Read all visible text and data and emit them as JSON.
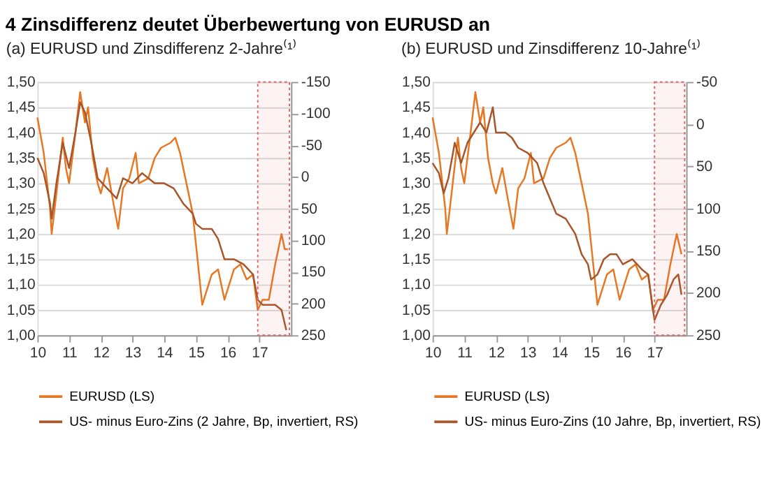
{
  "chart_data": [
    {
      "type": "line",
      "title": "4 Zinsdifferenz deutet Überbewertung von EURUSD an",
      "subtitle": "(a) EURUSD und Zinsdifferenz 2-Jahre⁽¹⁾",
      "xlim": [
        10,
        18
      ],
      "xticks": [
        10,
        11,
        12,
        13,
        14,
        15,
        16,
        17
      ],
      "ylim": [
        1.0,
        1.5
      ],
      "yticks": [
        {
          "value": 1.0,
          "label": "1,00"
        },
        {
          "value": 1.05,
          "label": "1,05"
        },
        {
          "value": 1.1,
          "label": "1,10"
        },
        {
          "value": 1.15,
          "label": "1,15"
        },
        {
          "value": 1.2,
          "label": "1,20"
        },
        {
          "value": 1.25,
          "label": "1,25"
        },
        {
          "value": 1.3,
          "label": "1,30"
        },
        {
          "value": 1.35,
          "label": "1,35"
        },
        {
          "value": 1.4,
          "label": "1,40"
        },
        {
          "value": 1.45,
          "label": "1,45"
        },
        {
          "value": 1.5,
          "label": "1,50"
        }
      ],
      "y2lim": [
        250,
        -150
      ],
      "y2ticks": [
        250,
        200,
        150,
        100,
        50,
        0,
        -50,
        -100,
        -150
      ],
      "grid": "y",
      "legend": "bottom",
      "bands": [
        {
          "axis": "x",
          "from": 16.95,
          "to": 17.95,
          "color": "#e06666"
        }
      ],
      "series": [
        {
          "name": "EURUSD (LS)",
          "color": "#e87722",
          "x": [
            10.0,
            10.2,
            10.4,
            10.45,
            10.6,
            10.8,
            10.9,
            11.0,
            11.2,
            11.35,
            11.5,
            11.6,
            11.75,
            11.9,
            12.0,
            12.2,
            12.4,
            12.55,
            12.7,
            12.9,
            13.1,
            13.2,
            13.5,
            13.7,
            13.9,
            14.2,
            14.35,
            14.5,
            14.7,
            14.9,
            15.0,
            15.2,
            15.3,
            15.5,
            15.7,
            15.9,
            16.0,
            16.2,
            16.4,
            16.6,
            16.8,
            16.95,
            17.1,
            17.3,
            17.5,
            17.7,
            17.8,
            17.9
          ],
          "values": [
            1.43,
            1.36,
            1.25,
            1.2,
            1.28,
            1.39,
            1.33,
            1.3,
            1.4,
            1.48,
            1.42,
            1.45,
            1.35,
            1.3,
            1.28,
            1.33,
            1.26,
            1.21,
            1.29,
            1.31,
            1.36,
            1.3,
            1.31,
            1.35,
            1.37,
            1.38,
            1.39,
            1.36,
            1.3,
            1.24,
            1.18,
            1.06,
            1.08,
            1.12,
            1.13,
            1.07,
            1.09,
            1.13,
            1.14,
            1.11,
            1.12,
            1.05,
            1.07,
            1.07,
            1.14,
            1.2,
            1.17,
            1.17
          ]
        },
        {
          "name": "US- minus Euro-Zins (2 Jahre, Bp, invertiert, RS)",
          "color": "#a8552a",
          "axis": "y2",
          "x": [
            10.0,
            10.2,
            10.4,
            10.45,
            10.6,
            10.8,
            11.0,
            11.2,
            11.35,
            11.5,
            11.7,
            11.9,
            12.2,
            12.5,
            12.7,
            13.0,
            13.3,
            13.7,
            14.0,
            14.3,
            14.6,
            14.9,
            15.0,
            15.2,
            15.5,
            15.7,
            15.8,
            15.9,
            16.2,
            16.5,
            16.8,
            16.95,
            17.1,
            17.3,
            17.5,
            17.7,
            17.85
          ],
          "values": [
            -30,
            -6,
            42,
            66,
            10,
            -54,
            -14,
            -70,
            -118,
            -102,
            -54,
            2,
            18,
            34,
            2,
            10,
            -6,
            10,
            10,
            18,
            42,
            58,
            74,
            82,
            82,
            98,
            114,
            130,
            130,
            138,
            154,
            194,
            202,
            202,
            202,
            210,
            242
          ]
        }
      ]
    },
    {
      "type": "line",
      "subtitle": "(b) EURUSD und Zinsdifferenz 10-Jahre⁽¹⁾",
      "xlim": [
        10,
        18
      ],
      "xticks": [
        10,
        11,
        12,
        13,
        14,
        15,
        16,
        17
      ],
      "ylim": [
        1.0,
        1.5
      ],
      "yticks": [
        {
          "value": 1.0,
          "label": "1,00"
        },
        {
          "value": 1.05,
          "label": "1,05"
        },
        {
          "value": 1.1,
          "label": "1,10"
        },
        {
          "value": 1.15,
          "label": "1,15"
        },
        {
          "value": 1.2,
          "label": "1,20"
        },
        {
          "value": 1.25,
          "label": "1,25"
        },
        {
          "value": 1.3,
          "label": "1,30"
        },
        {
          "value": 1.35,
          "label": "1,35"
        },
        {
          "value": 1.4,
          "label": "1,40"
        },
        {
          "value": 1.45,
          "label": "1,45"
        },
        {
          "value": 1.5,
          "label": "1,50"
        }
      ],
      "y2lim": [
        250,
        -50
      ],
      "y2ticks": [
        250,
        200,
        150,
        100,
        50,
        0,
        -50
      ],
      "grid": "y",
      "legend": "bottom",
      "bands": [
        {
          "axis": "x",
          "from": 17.0,
          "to": 17.95,
          "color": "#e06666"
        }
      ],
      "series": [
        {
          "name": "EURUSD (LS)",
          "color": "#e87722",
          "x": [
            10.0,
            10.2,
            10.4,
            10.45,
            10.6,
            10.8,
            10.9,
            11.0,
            11.2,
            11.35,
            11.5,
            11.6,
            11.75,
            11.9,
            12.0,
            12.2,
            12.4,
            12.55,
            12.7,
            12.9,
            13.1,
            13.2,
            13.5,
            13.7,
            13.9,
            14.2,
            14.35,
            14.5,
            14.7,
            14.9,
            15.0,
            15.2,
            15.3,
            15.5,
            15.7,
            15.9,
            16.0,
            16.2,
            16.4,
            16.6,
            16.8,
            16.95,
            17.1,
            17.3,
            17.5,
            17.7,
            17.85
          ],
          "values": [
            1.43,
            1.36,
            1.25,
            1.2,
            1.28,
            1.39,
            1.33,
            1.3,
            1.4,
            1.48,
            1.42,
            1.45,
            1.35,
            1.3,
            1.28,
            1.33,
            1.26,
            1.21,
            1.29,
            1.31,
            1.36,
            1.3,
            1.31,
            1.35,
            1.37,
            1.38,
            1.39,
            1.36,
            1.3,
            1.24,
            1.18,
            1.06,
            1.08,
            1.12,
            1.13,
            1.07,
            1.09,
            1.13,
            1.14,
            1.11,
            1.12,
            1.05,
            1.07,
            1.07,
            1.14,
            1.2,
            1.16
          ]
        },
        {
          "name": "US- minus Euro-Zins (10 Jahre, Bp, invertiert, RS)",
          "color": "#a8552a",
          "axis": "y2",
          "x": [
            10.0,
            10.2,
            10.35,
            10.5,
            10.7,
            10.9,
            11.1,
            11.3,
            11.5,
            11.7,
            11.9,
            12.0,
            12.3,
            12.5,
            12.7,
            13.0,
            13.3,
            13.5,
            13.7,
            13.9,
            14.2,
            14.5,
            14.7,
            14.9,
            15.0,
            15.2,
            15.4,
            15.6,
            15.8,
            16.0,
            16.3,
            16.6,
            16.8,
            16.95,
            17.0,
            17.2,
            17.4,
            17.6,
            17.75,
            17.85
          ],
          "values": [
            46,
            58,
            82,
            64,
            22,
            46,
            22,
            10,
            -2,
            10,
            -20,
            10,
            10,
            16,
            28,
            34,
            46,
            70,
            88,
            106,
            112,
            130,
            154,
            166,
            184,
            178,
            160,
            154,
            154,
            166,
            160,
            172,
            178,
            220,
            232,
            214,
            202,
            184,
            178,
            202
          ]
        }
      ]
    }
  ]
}
